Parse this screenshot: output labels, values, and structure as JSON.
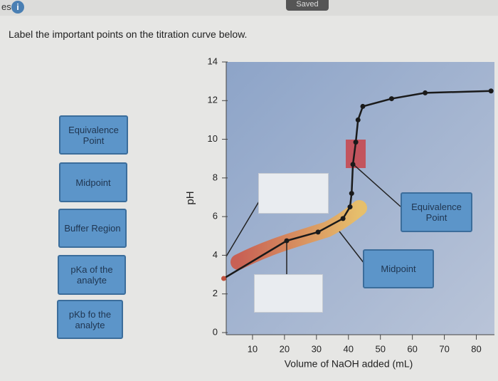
{
  "header": {
    "tab": "es",
    "status": "Saved"
  },
  "instruction": "Label the important points on the titration curve below.",
  "labels": [
    "Equivalence Point",
    "Midpoint",
    "Buffer Region",
    "pKa of the analyte",
    "pKb fo the analyte"
  ],
  "placed": [
    "Equivalence Point",
    "Midpoint"
  ],
  "chart_data": {
    "type": "line",
    "x_label": "Volume of NaOH added (mL)",
    "y_label": "pH",
    "x": [
      1,
      20.7,
      30.5,
      38.3,
      40.5,
      41,
      41.4,
      42.3,
      43,
      44.5,
      53.5,
      64,
      84.6
    ],
    "series": [
      {
        "color": "#1a1a1a",
        "values": [
          2.8,
          4.75,
          5.2,
          5.9,
          6.5,
          7.2,
          8.7,
          9.85,
          11,
          11.7,
          12.1,
          12.4,
          12.5
        ]
      }
    ],
    "xlim": [
      0,
      85
    ],
    "ylim": [
      0,
      14
    ],
    "xticks": [
      10,
      20,
      30,
      40,
      50,
      60,
      70,
      80
    ],
    "yticks": [
      0,
      2,
      4,
      6,
      8,
      10,
      12,
      14
    ]
  }
}
